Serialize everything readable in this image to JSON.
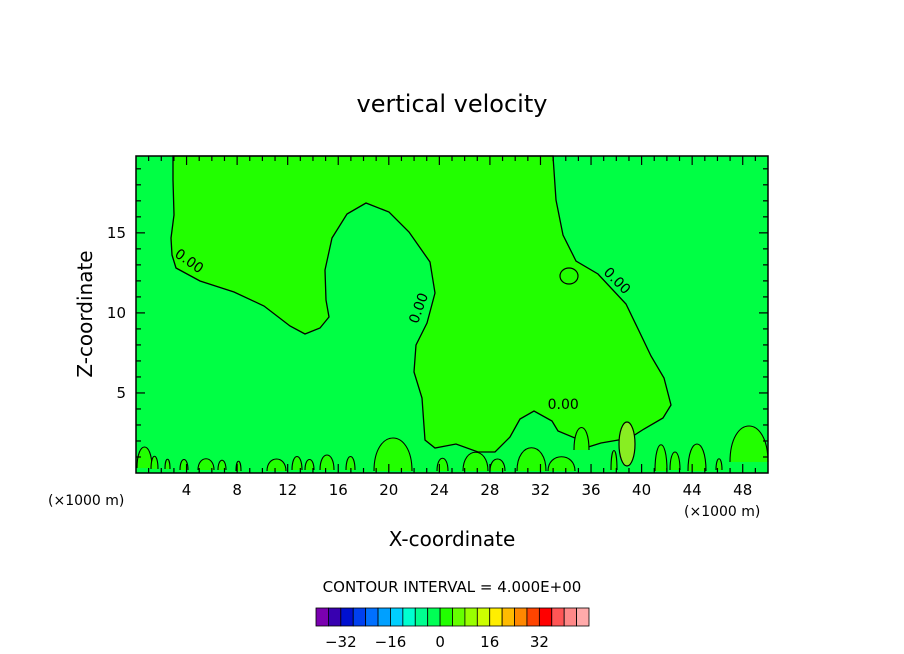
{
  "chart_data": {
    "type": "contour",
    "title": "vertical velocity",
    "xlabel": "X-coordinate",
    "ylabel": "Z-coordinate",
    "x_unit": "(×1000 m)",
    "y_unit": "(×1000 m)",
    "xlim": [
      0,
      50
    ],
    "ylim": [
      0,
      19.8
    ],
    "xticks": [
      4,
      8,
      12,
      16,
      20,
      24,
      28,
      32,
      36,
      40,
      44,
      48
    ],
    "yticks": [
      5,
      10,
      15
    ],
    "contour_label": "0.00",
    "contour_labels": [
      {
        "x": 4.0,
        "y": 13.0,
        "text": "0.00",
        "angle": 35
      },
      {
        "x": 22.7,
        "y": 10.2,
        "text": "0.00",
        "angle": -70
      },
      {
        "x": 37.8,
        "y": 11.8,
        "text": "0.00",
        "angle": 45
      },
      {
        "x": 33.8,
        "y": 4.0,
        "text": "0.00",
        "angle": 0
      }
    ],
    "contour_interval_text": "CONTOUR INTERVAL = 4.000E+00",
    "colorbar": {
      "levels": [
        -36,
        -32,
        -28,
        -24,
        -20,
        -16,
        -12,
        -8,
        -4,
        0,
        4,
        8,
        12,
        16,
        20,
        24,
        28,
        32,
        36
      ],
      "tick_labels": [
        "-32",
        "-16",
        "0",
        "16",
        "32"
      ],
      "tick_values": [
        -32,
        -16,
        0,
        16,
        32
      ],
      "colors": [
        "#7a00b0",
        "#3800b0",
        "#0010d0",
        "#0040f0",
        "#0070ff",
        "#00a0ff",
        "#00d0ff",
        "#00ffd0",
        "#00ff90",
        "#00ff55",
        "#22ff00",
        "#66ff00",
        "#99ff00",
        "#ccff00",
        "#ffee00",
        "#ffbb00",
        "#ff8800",
        "#ff4400",
        "#ff0000",
        "#ff5555",
        "#ff8888",
        "#ffaaaa"
      ]
    },
    "regions": {
      "negative_fill": "#00ff44",
      "positive_fill": "#22ff00",
      "strong_fill": "#88ee22",
      "contour_color": "#000000"
    }
  }
}
